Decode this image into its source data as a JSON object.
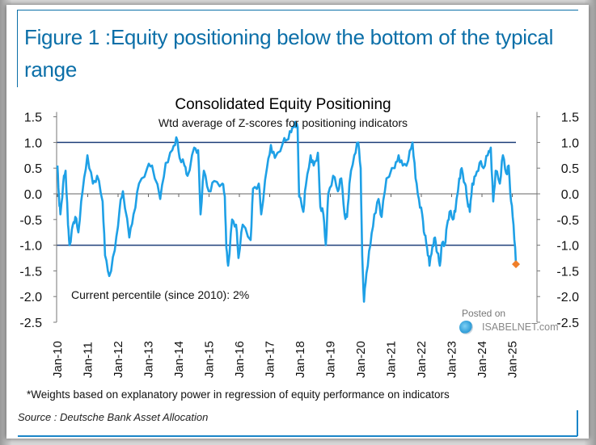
{
  "figure": {
    "title": "Figure 1 :Equity positioning below the bottom of the typical range",
    "footnote": "*Weights based on explanatory power in regression of equity performance on indicators",
    "source": "Source : Deutsche Bank Asset Allocation",
    "watermark_posted": "Posted on",
    "watermark_site": "ISABELNET.com",
    "colors": {
      "frame": "#0b6fa8",
      "line": "#1ea0e6",
      "marker": "#f07f2a",
      "reference": "#1f3f7a"
    }
  },
  "chart_data": {
    "type": "line",
    "title": "Consolidated Equity Positioning",
    "subtitle": "Wtd average of Z-scores for positioning indicators",
    "annotation": "Current percentile (since 2010): 2%",
    "xlabel": "",
    "ylabel": "",
    "ylim": [
      -2.5,
      1.5
    ],
    "xlim": [
      2010,
      2025.2
    ],
    "yticks": [
      "1.5",
      "1.0",
      "0.5",
      "0.0",
      "-0.5",
      "-1.0",
      "-1.5",
      "-2.0",
      "-2.5"
    ],
    "ytick_values": [
      1.5,
      1.0,
      0.5,
      0.0,
      -0.5,
      -1.0,
      -1.5,
      -2.0,
      -2.5
    ],
    "xticks": [
      "Jan-10",
      "Jan-11",
      "Jan-12",
      "Jan-13",
      "Jan-14",
      "Jan-15",
      "Jan-16",
      "Jan-17",
      "Jan-18",
      "Jan-19",
      "Jan-20",
      "Jan-21",
      "Jan-22",
      "Jan-23",
      "Jan-24",
      "Jan-25"
    ],
    "xtick_values": [
      2010,
      2011,
      2012,
      2013,
      2014,
      2015,
      2016,
      2017,
      2018,
      2019,
      2020,
      2021,
      2022,
      2023,
      2024,
      2025
    ],
    "reference_lines": [
      1.0,
      -1.0
    ],
    "zero_line": 0.0,
    "grid": false,
    "dual_y_axis": true,
    "current_marker": {
      "x": 2025.12,
      "y": -1.37
    },
    "series": [
      {
        "name": "Consolidated Equity Positioning",
        "x": [
          2010.0,
          2010.05,
          2010.1,
          2010.19,
          2010.27,
          2010.35,
          2010.4,
          2010.51,
          2010.59,
          2010.69,
          2010.83,
          2010.99,
          2011.17,
          2011.31,
          2011.49,
          2011.57,
          2011.71,
          2011.89,
          2012.05,
          2012.16,
          2012.37,
          2012.51,
          2012.69,
          2012.96,
          2013.12,
          2013.39,
          2013.57,
          2013.79,
          2013.92,
          2014.03,
          2014.19,
          2014.29,
          2014.51,
          2014.64,
          2014.72,
          2014.83,
          2014.99,
          2015.17,
          2015.44,
          2015.52,
          2015.57,
          2015.63,
          2015.76,
          2015.89,
          2015.97,
          2016.11,
          2016.37,
          2016.45,
          2016.64,
          2016.72,
          2016.91,
          2017.04,
          2017.17,
          2017.44,
          2017.57,
          2017.71,
          2017.84,
          2017.92,
          2017.97,
          2018.11,
          2018.19,
          2018.35,
          2018.45,
          2018.59,
          2018.67,
          2018.77,
          2018.85,
          2018.93,
          2019.09,
          2019.25,
          2019.36,
          2019.47,
          2019.55,
          2019.63,
          2019.79,
          2019.92,
          2020.0,
          2020.05,
          2020.11,
          2020.19,
          2020.32,
          2020.45,
          2020.59,
          2020.69,
          2020.85,
          2021.12,
          2021.25,
          2021.39,
          2021.57,
          2021.71,
          2021.81,
          2021.92,
          2022.03,
          2022.11,
          2022.19,
          2022.27,
          2022.37,
          2022.45,
          2022.53,
          2022.61,
          2022.69,
          2022.77,
          2022.85,
          2022.93,
          2023.04,
          2023.12,
          2023.25,
          2023.33,
          2023.44,
          2023.52,
          2023.6,
          2023.68,
          2023.79,
          2023.92,
          2024.05,
          2024.19,
          2024.29,
          2024.37,
          2024.45,
          2024.59,
          2024.69,
          2024.8,
          2024.88,
          2024.96,
          2025.04,
          2025.12
        ],
        "y": [
          0.55,
          -0.05,
          -0.4,
          0.2,
          0.45,
          -0.6,
          -1.0,
          -0.6,
          -0.45,
          -0.75,
          0.05,
          0.75,
          0.2,
          0.35,
          -0.15,
          -1.2,
          -1.6,
          -1.1,
          -0.3,
          0.05,
          -0.85,
          -0.4,
          0.2,
          0.5,
          0.55,
          -0.1,
          0.6,
          0.85,
          1.1,
          0.7,
          0.55,
          0.35,
          0.9,
          0.85,
          -0.4,
          0.45,
          0.05,
          0.25,
          0.2,
          -0.05,
          -1.05,
          -1.4,
          -0.5,
          -0.6,
          -1.25,
          -0.6,
          -0.9,
          0.1,
          0.2,
          -0.4,
          0.5,
          0.95,
          0.7,
          1.0,
          1.05,
          1.2,
          1.4,
          1.3,
          -0.05,
          -0.35,
          0.15,
          0.75,
          0.55,
          0.8,
          -0.25,
          -0.4,
          -1.0,
          0.0,
          0.35,
          0.05,
          0.3,
          -0.4,
          -0.45,
          0.2,
          0.75,
          1.0,
          0.5,
          -1.2,
          -2.1,
          -1.55,
          -1.0,
          -0.4,
          -0.1,
          -0.45,
          0.3,
          0.5,
          0.75,
          0.55,
          0.65,
          1.0,
          0.3,
          -0.1,
          -0.4,
          -0.8,
          -1.05,
          -1.4,
          -1.0,
          -0.85,
          -1.15,
          -1.4,
          -0.95,
          -1.0,
          -0.6,
          -0.35,
          -0.5,
          -0.35,
          0.3,
          0.5,
          0.2,
          -0.15,
          -0.35,
          0.2,
          0.35,
          0.6,
          0.5,
          0.75,
          0.9,
          -0.15,
          0.45,
          0.2,
          0.75,
          0.4,
          0.55,
          -0.15,
          -0.6,
          -1.37
        ]
      }
    ]
  }
}
